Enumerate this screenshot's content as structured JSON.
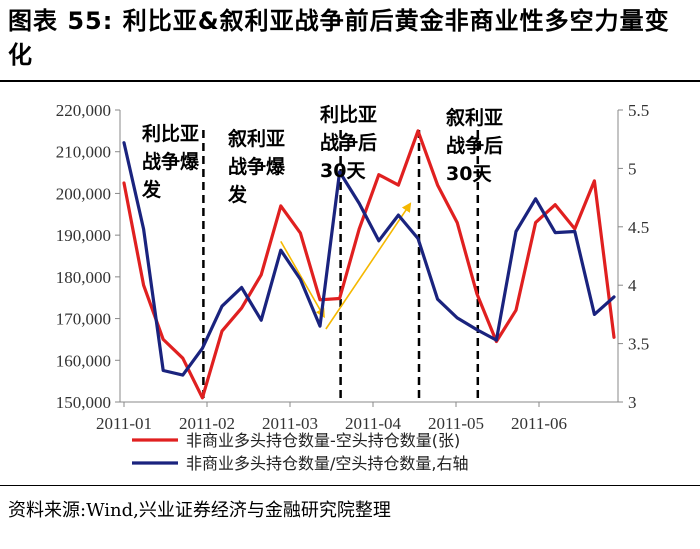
{
  "title": "图表 55:  利比亚&叙利亚战争前后黄金非商业性多空力量变化",
  "source": "资料来源:Wind,兴业证券经济与金融研究院整理",
  "chart_data": {
    "type": "line",
    "x_tick_labels": [
      "2011-01",
      "2011-02",
      "2011-03",
      "2011-04",
      "2011-05",
      "2011-06"
    ],
    "left_axis": {
      "min": 150000,
      "max": 220000,
      "step": 10000,
      "tick_labels": [
        "150,000",
        "160,000",
        "170,000",
        "180,000",
        "190,000",
        "200,000",
        "210,000",
        "220,000"
      ]
    },
    "right_axis": {
      "min": 3,
      "max": 5.5,
      "step": 0.5,
      "tick_labels": [
        "3",
        "3.5",
        "4",
        "4.5",
        "5",
        "5.5"
      ]
    },
    "series": [
      {
        "name": "非商业多头持仓数量-空头持仓数量(张)",
        "axis": "left",
        "color": "#e02020",
        "values": [
          202500,
          178000,
          165000,
          160500,
          151000,
          167000,
          172500,
          180500,
          197000,
          190500,
          174500,
          174800,
          191500,
          204500,
          202000,
          215000,
          202000,
          193000,
          176000,
          164500,
          172000,
          193000,
          197300,
          191500,
          203000,
          165500
        ]
      },
      {
        "name": "非商业多头持仓数量/空头持仓数量,右轴",
        "axis": "right",
        "color": "#1a237e",
        "values": [
          5.22,
          4.48,
          3.27,
          3.23,
          3.46,
          3.82,
          3.98,
          3.7,
          4.3,
          4.05,
          3.65,
          4.97,
          4.7,
          4.38,
          4.6,
          4.4,
          3.88,
          3.72,
          3.62,
          3.53,
          4.46,
          4.74,
          4.45,
          4.46,
          3.75,
          3.9
        ]
      }
    ],
    "annotations": [
      {
        "lines": [
          "利比亚",
          "战争爆",
          "发"
        ]
      },
      {
        "lines": [
          "叙利亚",
          "战争爆",
          "发"
        ]
      },
      {
        "lines": [
          "利比亚",
          "战争后",
          "30天"
        ]
      },
      {
        "lines": [
          "叙利亚",
          "战争后",
          "30天"
        ]
      }
    ],
    "vlines_at_index": [
      4,
      11,
      15,
      18
    ],
    "arrows": [
      {
        "from": [
          8,
          188500
        ],
        "to": [
          10.2,
          170500
        ]
      },
      {
        "from": [
          10.3,
          167500
        ],
        "to": [
          14.6,
          197500
        ]
      }
    ],
    "legend_placement": "bottom",
    "grid": false
  }
}
